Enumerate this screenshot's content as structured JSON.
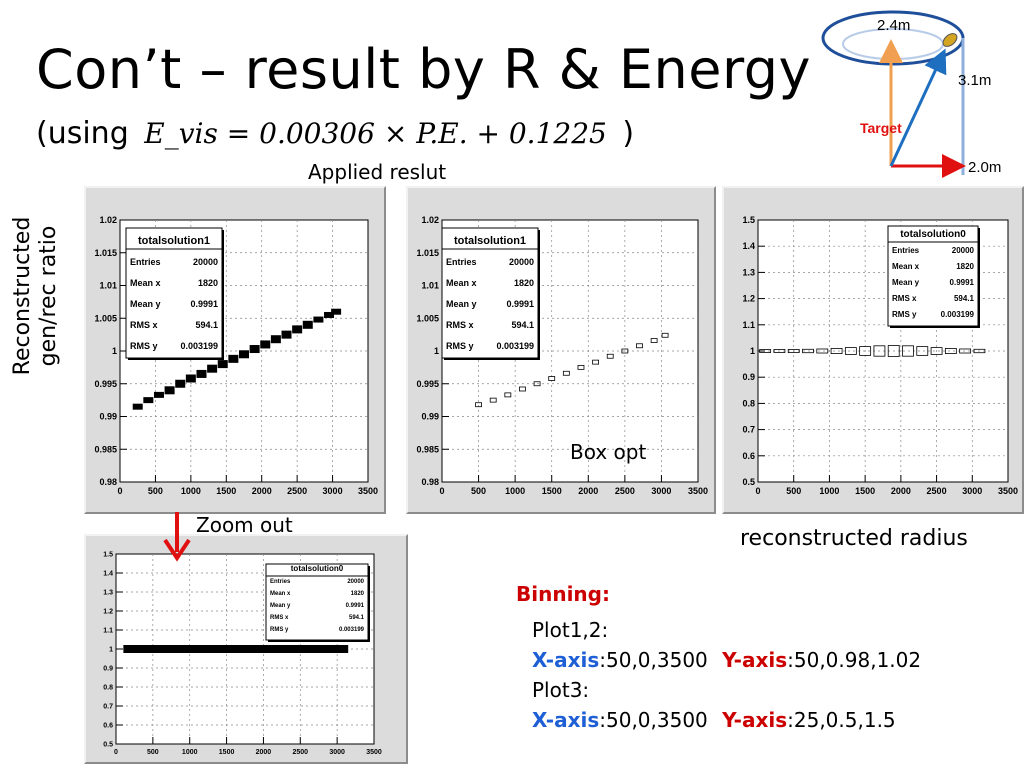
{
  "title": "Con’t – result by R & Energy",
  "subtitle": {
    "prefix": "(using",
    "equation": "E_vis = 0.00306 × P.E. + 0.1225",
    "suffix": ")"
  },
  "notes": {
    "applied": "Applied reslut",
    "ylabel_line1": "Reconstructed",
    "ylabel_line2": "gen/rec ratio",
    "box_opt": "Box opt",
    "zoom_out": "Zoom out",
    "xlabel": "reconstructed radius"
  },
  "geometry_diagram": {
    "labels": {
      "top": "2.4m",
      "height": "3.1m",
      "target": "Target",
      "bottom": "2.0m"
    }
  },
  "binning": {
    "heading": "Binning:",
    "plot12_label": "Plot1,2:",
    "plot12_x_label": "X-axis",
    "plot12_x_value": ":50,0,3500",
    "plot12_y_label": "Y-axis",
    "plot12_y_value": ":50,0.98,1.02",
    "plot3_label": "Plot3:",
    "plot3_x_label": "X-axis",
    "plot3_x_value": ":50,0,3500",
    "plot3_y_label": "Y-axis",
    "plot3_y_value": ":25,0.5,1.5"
  },
  "chart_data": [
    {
      "type": "scatter",
      "style": "box-filled",
      "title": "totalsolution1",
      "stats": {
        "rows": [
          [
            "Entries",
            "20000"
          ],
          [
            "Mean x",
            "1820"
          ],
          [
            "Mean y",
            "0.9991"
          ],
          [
            "RMS x",
            "594.1"
          ],
          [
            "RMS y",
            "0.003199"
          ]
        ]
      },
      "xlim": [
        0,
        3500
      ],
      "ylim": [
        0.98,
        1.02
      ],
      "xticks": [
        "0",
        "500",
        "1000",
        "1500",
        "2000",
        "2500",
        "3000",
        "3500"
      ],
      "yticks": [
        "0.98",
        "0.985",
        "0.99",
        "0.995",
        "1",
        "1.005",
        "1.01",
        "1.015",
        "1.02"
      ],
      "grid": true,
      "points": [
        [
          250,
          0.9915
        ],
        [
          400,
          0.9925
        ],
        [
          550,
          0.9933
        ],
        [
          700,
          0.994
        ],
        [
          850,
          0.995
        ],
        [
          1000,
          0.9958
        ],
        [
          1150,
          0.9965
        ],
        [
          1300,
          0.9973
        ],
        [
          1450,
          0.998
        ],
        [
          1600,
          0.9988
        ],
        [
          1750,
          0.9995
        ],
        [
          1900,
          1.0003
        ],
        [
          2050,
          1.001
        ],
        [
          2200,
          1.0018
        ],
        [
          2350,
          1.0025
        ],
        [
          2500,
          1.0033
        ],
        [
          2650,
          1.004
        ],
        [
          2800,
          1.0048
        ],
        [
          2950,
          1.0055
        ],
        [
          3050,
          1.006
        ]
      ]
    },
    {
      "type": "scatter",
      "style": "box-open",
      "title": "totalsolution1",
      "stats": {
        "rows": [
          [
            "Entries",
            "20000"
          ],
          [
            "Mean x",
            "1820"
          ],
          [
            "Mean y",
            "0.9991"
          ],
          [
            "RMS x",
            "594.1"
          ],
          [
            "RMS y",
            "0.003199"
          ]
        ]
      },
      "xlim": [
        0,
        3500
      ],
      "ylim": [
        0.98,
        1.02
      ],
      "xticks": [
        "0",
        "500",
        "1000",
        "1500",
        "2000",
        "2500",
        "3000",
        "3500"
      ],
      "yticks": [
        "0.98",
        "0.985",
        "0.99",
        "0.995",
        "1",
        "1.005",
        "1.01",
        "1.015",
        "1.02"
      ],
      "grid": true,
      "points": [
        [
          500,
          0.9918
        ],
        [
          700,
          0.9925
        ],
        [
          900,
          0.9933
        ],
        [
          1100,
          0.9942
        ],
        [
          1300,
          0.995
        ],
        [
          1500,
          0.9958
        ],
        [
          1700,
          0.9966
        ],
        [
          1900,
          0.9975
        ],
        [
          2100,
          0.9983
        ],
        [
          2300,
          0.9992
        ],
        [
          2500,
          1.0
        ],
        [
          2700,
          1.0008
        ],
        [
          2900,
          1.0016
        ],
        [
          3050,
          1.0024
        ]
      ]
    },
    {
      "type": "scatter",
      "style": "box-open",
      "title": "totalsolution0",
      "stats": {
        "rows": [
          [
            "Entries",
            "20000"
          ],
          [
            "Mean x",
            "1820"
          ],
          [
            "Mean y",
            "0.9991"
          ],
          [
            "RMS x",
            "594.1"
          ],
          [
            "RMS y",
            "0.003199"
          ]
        ]
      },
      "xlim": [
        0,
        3500
      ],
      "ylim": [
        0.5,
        1.5
      ],
      "xticks": [
        "0",
        "500",
        "1000",
        "1500",
        "2000",
        "2500",
        "3000",
        "3500"
      ],
      "yticks": [
        "0.5",
        "0.6",
        "0.7",
        "0.8",
        "0.9",
        "1",
        "1.1",
        "1.2",
        "1.3",
        "1.4",
        "1.5"
      ],
      "grid": true,
      "points": [
        [
          100,
          1.0
        ],
        [
          300,
          1.0
        ],
        [
          500,
          1.0
        ],
        [
          700,
          1.0
        ],
        [
          900,
          1.0
        ],
        [
          1100,
          1.0
        ],
        [
          1300,
          1.0
        ],
        [
          1500,
          1.0
        ],
        [
          1700,
          1.0
        ],
        [
          1900,
          1.0
        ],
        [
          2100,
          1.0
        ],
        [
          2300,
          1.0
        ],
        [
          2500,
          1.0
        ],
        [
          2700,
          1.0
        ],
        [
          2900,
          1.0
        ],
        [
          3100,
          1.0
        ]
      ]
    },
    {
      "type": "scatter",
      "style": "band",
      "title": "totalsolution0",
      "stats": {
        "rows": [
          [
            "Entries",
            "20000"
          ],
          [
            "Mean x",
            "1820"
          ],
          [
            "Mean y",
            "0.9991"
          ],
          [
            "RMS x",
            "594.1"
          ],
          [
            "RMS y",
            "0.003199"
          ]
        ]
      },
      "xlim": [
        0,
        3500
      ],
      "ylim": [
        0.5,
        1.5
      ],
      "xticks": [
        "0",
        "500",
        "1000",
        "1500",
        "2000",
        "2500",
        "3000",
        "3500"
      ],
      "yticks": [
        "0.5",
        "0.6",
        "0.7",
        "0.8",
        "0.9",
        "1",
        "1.1",
        "1.2",
        "1.3",
        "1.4",
        "1.5"
      ],
      "grid": true,
      "points": [
        [
          100,
          1.0
        ],
        [
          3150,
          1.0
        ]
      ]
    }
  ]
}
